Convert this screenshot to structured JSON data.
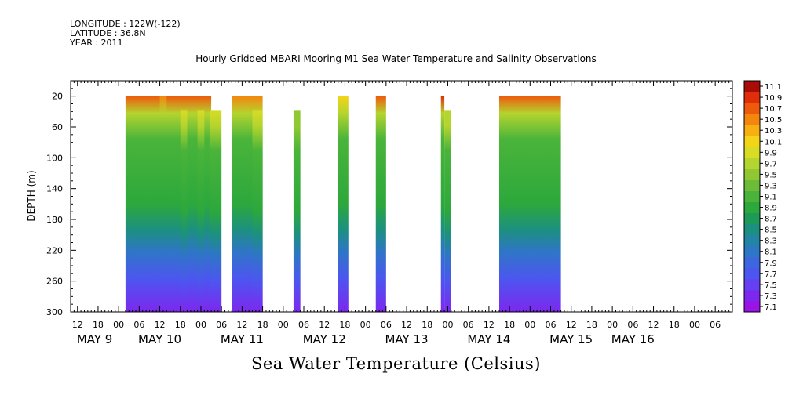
{
  "header": {
    "longitude": "LONGITUDE : 122W(-122)",
    "latitude": "LATITUDE : 36.8N",
    "year": "YEAR : 2011"
  },
  "chart_data": {
    "type": "heatmap",
    "title": "Hourly Gridded MBARI Mooring M1 Sea Water Temperature and Salinity Observations",
    "variable_title": "Sea Water Temperature (Celsius)",
    "ylabel": "DEPTH (m)",
    "x_range_hours": [
      -14,
      179
    ],
    "x_hour_ticks": [
      {
        "h": -12,
        "label": "12"
      },
      {
        "h": -6,
        "label": "18"
      },
      {
        "h": 0,
        "label": "00"
      },
      {
        "h": 6,
        "label": "06"
      },
      {
        "h": 12,
        "label": "12"
      },
      {
        "h": 18,
        "label": "18"
      },
      {
        "h": 24,
        "label": "00"
      },
      {
        "h": 30,
        "label": "06"
      },
      {
        "h": 36,
        "label": "12"
      },
      {
        "h": 42,
        "label": "18"
      },
      {
        "h": 48,
        "label": "00"
      },
      {
        "h": 54,
        "label": "06"
      },
      {
        "h": 60,
        "label": "12"
      },
      {
        "h": 66,
        "label": "18"
      },
      {
        "h": 72,
        "label": "00"
      },
      {
        "h": 78,
        "label": "06"
      },
      {
        "h": 84,
        "label": "12"
      },
      {
        "h": 90,
        "label": "18"
      },
      {
        "h": 96,
        "label": "00"
      },
      {
        "h": 102,
        "label": "06"
      },
      {
        "h": 108,
        "label": "12"
      },
      {
        "h": 114,
        "label": "18"
      },
      {
        "h": 120,
        "label": "00"
      },
      {
        "h": 126,
        "label": "06"
      },
      {
        "h": 132,
        "label": "12"
      },
      {
        "h": 138,
        "label": "18"
      },
      {
        "h": 144,
        "label": "00"
      },
      {
        "h": 150,
        "label": "06"
      },
      {
        "h": 156,
        "label": "12"
      },
      {
        "h": 162,
        "label": "18"
      },
      {
        "h": 168,
        "label": "00"
      },
      {
        "h": 174,
        "label": "06"
      }
    ],
    "day_labels": [
      {
        "h": -7,
        "label": "MAY  9"
      },
      {
        "h": 12,
        "label": "MAY 10"
      },
      {
        "h": 36,
        "label": "MAY 11"
      },
      {
        "h": 60,
        "label": "MAY 12"
      },
      {
        "h": 84,
        "label": "MAY 13"
      },
      {
        "h": 108,
        "label": "MAY 14"
      },
      {
        "h": 132,
        "label": "MAY 15"
      },
      {
        "h": 150,
        "label": "MAY 16"
      }
    ],
    "y_range": [
      0,
      300
    ],
    "y_inverted": true,
    "y_ticks": [
      20,
      60,
      100,
      140,
      180,
      220,
      260,
      300
    ],
    "colorbar": {
      "values": [
        7.1,
        7.3,
        7.5,
        7.7,
        7.9,
        8.1,
        8.3,
        8.5,
        8.7,
        8.9,
        9.1,
        9.3,
        9.5,
        9.7,
        9.9,
        10.1,
        10.3,
        10.5,
        10.7,
        10.9,
        11.1
      ],
      "labels": [
        "7.1",
        "7.3",
        "7.5",
        "7.7",
        "7.9",
        "8.1",
        "8.3",
        "8.5",
        "8.7",
        "8.9",
        "9.1",
        "9.3",
        "9.5",
        "9.7",
        "9.9",
        "10.1",
        "10.3",
        "10.5",
        "10.7",
        "10.9",
        "11.1"
      ],
      "colors": [
        "#9b14e6",
        "#7d28ee",
        "#6440f2",
        "#4d55f0",
        "#3b66e0",
        "#2e76c6",
        "#2384a8",
        "#1c9080",
        "#1e9a58",
        "#2da83c",
        "#4ab43a",
        "#6cbc38",
        "#90c834",
        "#b4d42e",
        "#d8dc24",
        "#f4d418",
        "#f6b012",
        "#f4860e",
        "#ee5a0c",
        "#de2e0a",
        "#a80c06"
      ]
    },
    "segments": [
      {
        "start": 2,
        "end": 27,
        "top": 20,
        "surface_temp": 10.6
      },
      {
        "start": 12,
        "end": 14,
        "top": 20,
        "surface_temp": 10.4
      },
      {
        "start": 18,
        "end": 30,
        "top": 38,
        "surface_temp": 9.8
      },
      {
        "start": 20,
        "end": 23,
        "top": 20,
        "surface_temp": 10.6
      },
      {
        "start": 25,
        "end": 26.5,
        "top": 20,
        "surface_temp": 10.6
      },
      {
        "start": 33,
        "end": 42,
        "top": 20,
        "surface_temp": 10.5
      },
      {
        "start": 39,
        "end": 42,
        "top": 38,
        "surface_temp": 9.9
      },
      {
        "start": 51,
        "end": 53,
        "top": 38,
        "surface_temp": 9.5
      },
      {
        "start": 64,
        "end": 67,
        "top": 20,
        "surface_temp": 10.1
      },
      {
        "start": 75,
        "end": 78,
        "top": 20,
        "surface_temp": 10.6
      },
      {
        "start": 94,
        "end": 95,
        "top": 20,
        "surface_temp": 10.8
      },
      {
        "start": 95,
        "end": 97,
        "top": 38,
        "surface_temp": 9.6
      },
      {
        "start": 111,
        "end": 129,
        "top": 20,
        "surface_temp": 10.7
      }
    ]
  }
}
